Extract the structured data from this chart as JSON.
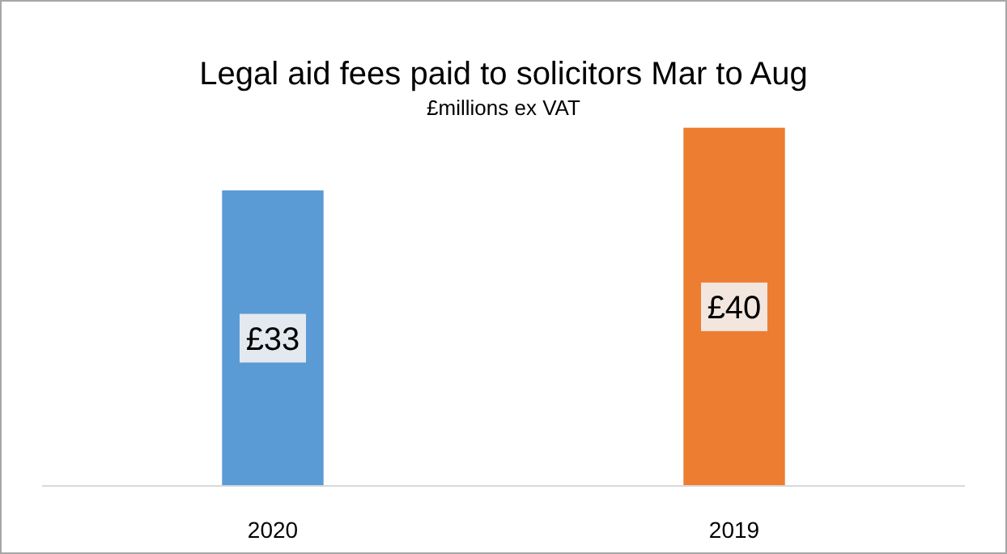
{
  "chart_data": {
    "type": "bar",
    "title": "Legal aid fees paid to solicitors Mar to Aug",
    "subtitle": "£millions ex VAT",
    "categories": [
      "2020",
      "2019"
    ],
    "values": [
      33,
      40
    ],
    "colors": [
      "#5b9bd5",
      "#ed7d31"
    ],
    "value_labels": [
      "£33",
      "£40"
    ],
    "tick_labels": "x"
  }
}
